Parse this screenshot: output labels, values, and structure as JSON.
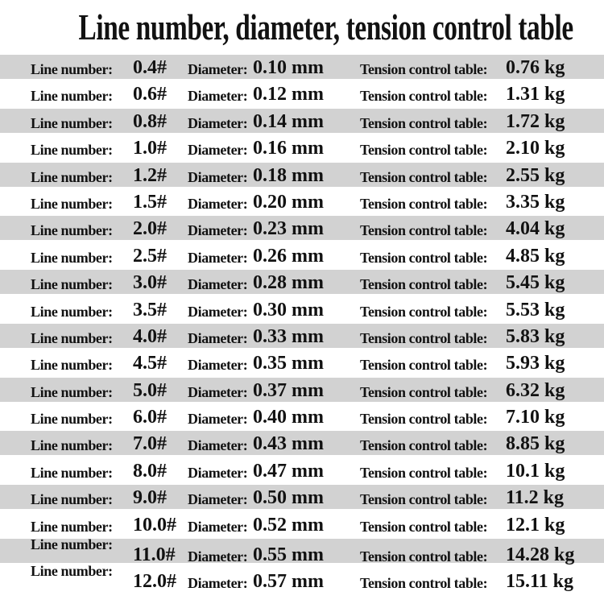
{
  "title": "Line number, diameter, tension control table",
  "labels": {
    "line_number": "Line number:",
    "diameter": "Diameter:",
    "tension": "Tension control table:"
  },
  "rows": [
    {
      "line_number": "0.4#",
      "diameter": "0.10 mm",
      "tension": "0.76 kg"
    },
    {
      "line_number": "0.6#",
      "diameter": "0.12 mm",
      "tension": "1.31 kg"
    },
    {
      "line_number": "0.8#",
      "diameter": "0.14 mm",
      "tension": "1.72 kg"
    },
    {
      "line_number": "1.0#",
      "diameter": "0.16 mm",
      "tension": "2.10 kg"
    },
    {
      "line_number": "1.2#",
      "diameter": "0.18 mm",
      "tension": "2.55 kg"
    },
    {
      "line_number": "1.5#",
      "diameter": "0.20 mm",
      "tension": "3.35 kg"
    },
    {
      "line_number": "2.0#",
      "diameter": "0.23 mm",
      "tension": "4.04 kg"
    },
    {
      "line_number": "2.5#",
      "diameter": "0.26 mm",
      "tension": "4.85 kg"
    },
    {
      "line_number": "3.0#",
      "diameter": "0.28 mm",
      "tension": "5.45 kg"
    },
    {
      "line_number": "3.5#",
      "diameter": "0.30 mm",
      "tension": "5.53 kg"
    },
    {
      "line_number": "4.0#",
      "diameter": "0.33 mm",
      "tension": "5.83 kg"
    },
    {
      "line_number": "4.5#",
      "diameter": "0.35 mm",
      "tension": "5.93 kg"
    },
    {
      "line_number": "5.0#",
      "diameter": "0.37 mm",
      "tension": "6.32 kg"
    },
    {
      "line_number": "6.0#",
      "diameter": "0.40 mm",
      "tension": "7.10 kg"
    },
    {
      "line_number": "7.0#",
      "diameter": "0.43 mm",
      "tension": "8.85 kg"
    },
    {
      "line_number": "8.0#",
      "diameter": "0.47 mm",
      "tension": "10.1 kg"
    },
    {
      "line_number": "9.0#",
      "diameter": "0.50 mm",
      "tension": "11.2 kg"
    },
    {
      "line_number": "10.0#",
      "diameter": "0.52 mm",
      "tension": "12.1 kg"
    },
    {
      "line_number": "11.0#",
      "diameter": "0.55 mm",
      "tension": "14.28 kg"
    },
    {
      "line_number": "12.0#",
      "diameter": "0.57 mm",
      "tension": "15.11 kg"
    }
  ],
  "colors": {
    "stripe": "#d2d2d2",
    "background": "#ffffff",
    "text": "#121212"
  },
  "chart_data": {
    "type": "table",
    "title": "Line number, diameter, tension control table",
    "columns": [
      "Line number",
      "Diameter (mm)",
      "Tension control (kg)"
    ],
    "line_numbers": [
      "0.4#",
      "0.6#",
      "0.8#",
      "1.0#",
      "1.2#",
      "1.5#",
      "2.0#",
      "2.5#",
      "3.0#",
      "3.5#",
      "4.0#",
      "4.5#",
      "5.0#",
      "6.0#",
      "7.0#",
      "8.0#",
      "9.0#",
      "10.0#",
      "11.0#",
      "12.0#"
    ],
    "diameters_mm": [
      0.1,
      0.12,
      0.14,
      0.16,
      0.18,
      0.2,
      0.23,
      0.26,
      0.28,
      0.3,
      0.33,
      0.35,
      0.37,
      0.4,
      0.43,
      0.47,
      0.5,
      0.52,
      0.55,
      0.57
    ],
    "tensions_kg": [
      0.76,
      1.31,
      1.72,
      2.1,
      2.55,
      3.35,
      4.04,
      4.85,
      5.45,
      5.53,
      5.83,
      5.93,
      6.32,
      7.1,
      8.85,
      10.1,
      11.2,
      12.1,
      14.28,
      15.11
    ],
    "layout_hints": {
      "striped_rows": "alternating gray/white starting gray",
      "grid": false,
      "legend": false
    }
  }
}
